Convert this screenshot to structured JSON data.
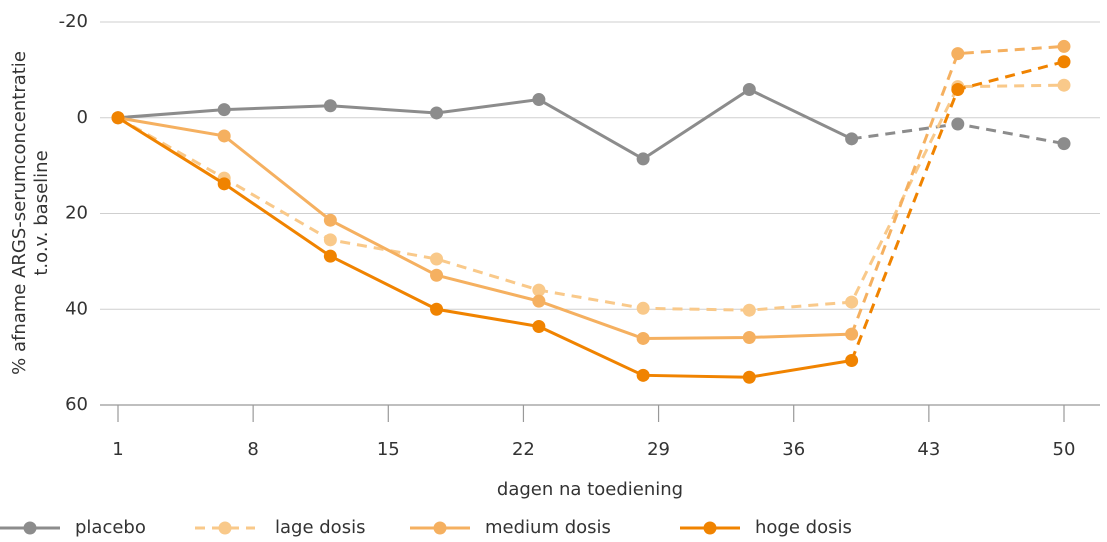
{
  "chart_data": {
    "type": "line",
    "xlabel": "dagen na toediening",
    "ylabel": [
      "% afname ARGS-serumconcentratie",
      "t.o.v. baseline"
    ],
    "x": [
      1,
      6.5,
      12,
      17.5,
      22.8,
      28.2,
      33.7,
      39,
      44.5,
      50
    ],
    "xlim": [
      1,
      50
    ],
    "xticks": [
      1,
      8,
      15,
      22,
      29,
      36,
      43,
      50
    ],
    "ylim": [
      60,
      -20
    ],
    "yticks": [
      -20,
      0,
      20,
      40,
      60
    ],
    "grid": true,
    "legend": "bottom",
    "series": [
      {
        "name": "placebo",
        "color": "#8c8c8c",
        "dashed_from": 7,
        "values": [
          0,
          -1.7,
          -2.5,
          -1,
          -3.8,
          8.6,
          -5.9,
          4.4,
          1.3,
          5.4
        ]
      },
      {
        "name": "lage dosis",
        "color": "#f9c98a",
        "dashed_from": 0,
        "values": [
          0,
          12.6,
          25.5,
          29.5,
          36,
          39.8,
          40.2,
          38.5,
          -6.5,
          -6.8
        ]
      },
      {
        "name": "medium dosis",
        "color": "#f5b060",
        "dashed_from": 7,
        "values": [
          0,
          3.8,
          21.4,
          32.9,
          38.3,
          46.1,
          45.9,
          45.2,
          -13.4,
          -14.9
        ]
      },
      {
        "name": "hoge dosis",
        "color": "#f08300",
        "dashed_from": 7,
        "values": [
          0,
          13.8,
          28.9,
          40,
          43.6,
          53.8,
          54.2,
          50.7,
          -5.9,
          -11.7
        ]
      }
    ]
  }
}
